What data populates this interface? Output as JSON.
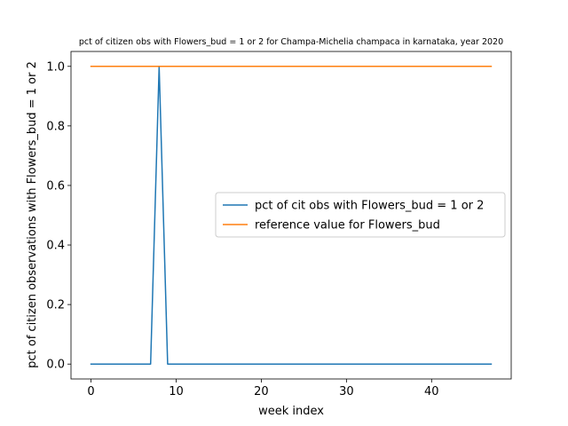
{
  "chart_data": {
    "type": "line",
    "title": "pct of citizen obs with Flowers_bud = 1 or 2 for Champa-Michelia champaca in karnataka, year 2020",
    "xlabel": "week index",
    "ylabel": "pct of citizen observations with Flowers_bud = 1 or 2",
    "xlim": [
      -2.35,
      49.35
    ],
    "ylim": [
      -0.05,
      1.05
    ],
    "xticks": [
      0,
      10,
      20,
      30,
      40
    ],
    "yticks": [
      0.0,
      0.2,
      0.4,
      0.6,
      0.8,
      1.0
    ],
    "xtick_labels": [
      "0",
      "10",
      "20",
      "30",
      "40"
    ],
    "ytick_labels": [
      "0.0",
      "0.2",
      "0.4",
      "0.6",
      "0.8",
      "1.0"
    ],
    "grid": false,
    "legend_position": "center-right",
    "series": [
      {
        "name": "pct of cit obs with Flowers_bud = 1 or 2",
        "color": "#1f77b4",
        "x": [
          0,
          1,
          2,
          3,
          4,
          5,
          6,
          7,
          8,
          9,
          10,
          11,
          12,
          13,
          14,
          15,
          16,
          17,
          18,
          19,
          20,
          21,
          22,
          23,
          24,
          25,
          26,
          27,
          28,
          29,
          30,
          31,
          32,
          33,
          34,
          35,
          36,
          37,
          38,
          39,
          40,
          41,
          42,
          43,
          44,
          45,
          46,
          47
        ],
        "values": [
          0,
          0,
          0,
          0,
          0,
          0,
          0,
          0,
          1,
          0,
          0,
          0,
          0,
          0,
          0,
          0,
          0,
          0,
          0,
          0,
          0,
          0,
          0,
          0,
          0,
          0,
          0,
          0,
          0,
          0,
          0,
          0,
          0,
          0,
          0,
          0,
          0,
          0,
          0,
          0,
          0,
          0,
          0,
          0,
          0,
          0,
          0,
          0
        ]
      },
      {
        "name": "reference value for Flowers_bud",
        "color": "#ff7f0e",
        "x": [
          0,
          47
        ],
        "values": [
          1,
          1
        ]
      }
    ]
  }
}
